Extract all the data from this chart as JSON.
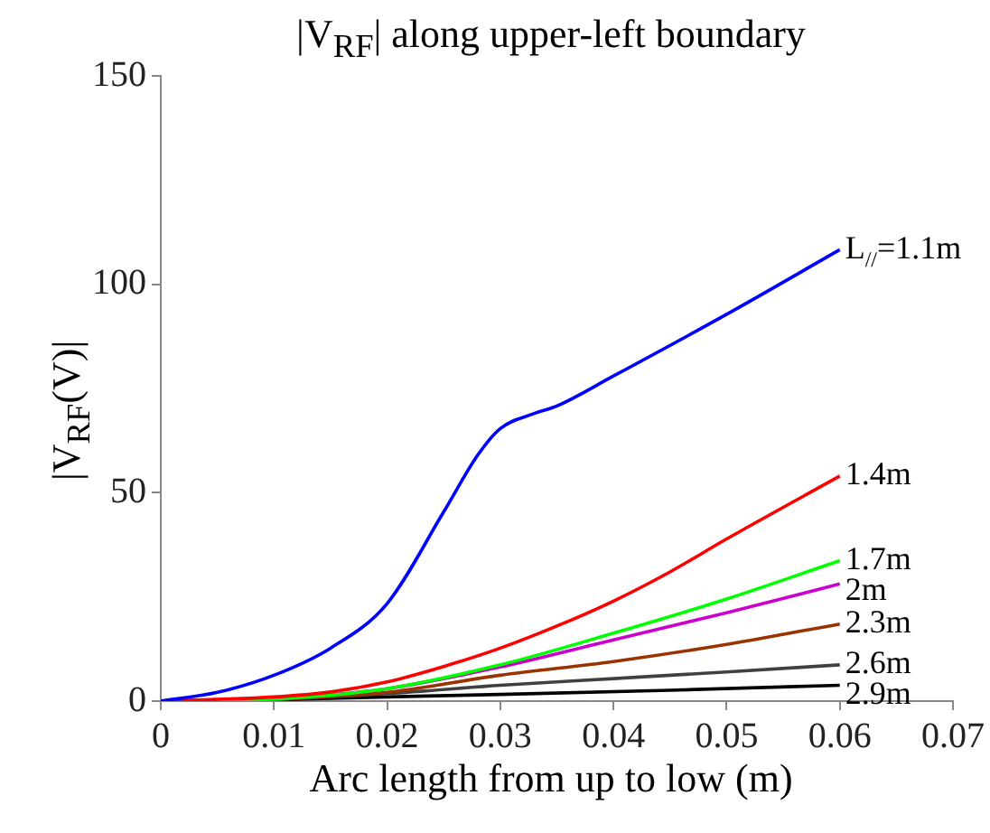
{
  "chart_data": {
    "type": "line",
    "title": "|V$_{RF}$| along upper-left boundary",
    "xlabel": "Arc length from up to low (m)",
    "ylabel": "|V$_{RF}$(V)|",
    "xlim": [
      0,
      0.07
    ],
    "xticks": [
      0,
      0.01,
      0.02,
      0.03,
      0.04,
      0.05,
      0.06,
      0.07
    ],
    "ylim": [
      0,
      150
    ],
    "yticks": [
      0,
      50,
      100,
      150
    ],
    "grid": false,
    "legend": false,
    "marker": "none",
    "line_style": "solid",
    "series": [
      {
        "name": "L$_{//}$=1.1m",
        "color": "#0000ff",
        "x": [
          0,
          0.005,
          0.01,
          0.015,
          0.02,
          0.025,
          0.028,
          0.03,
          0.033,
          0.035,
          0.04,
          0.05,
          0.06
        ],
        "values": [
          0,
          2.1,
          6.2,
          12.7,
          23.4,
          45.4,
          59,
          65.4,
          69,
          70.8,
          78,
          92.8,
          108.3
        ]
      },
      {
        "name": "1.4m",
        "color": "#ff0000",
        "x": [
          0,
          0.01,
          0.015,
          0.02,
          0.025,
          0.03,
          0.035,
          0.04,
          0.045,
          0.05,
          0.06
        ],
        "values": [
          0,
          1,
          2.2,
          4.6,
          8.3,
          12.7,
          18,
          24,
          31,
          38.9,
          54
        ]
      },
      {
        "name": "1.7m",
        "color": "#00ff00",
        "x": [
          0,
          0.01,
          0.02,
          0.03,
          0.04,
          0.05,
          0.06
        ],
        "values": [
          0,
          0.5,
          3,
          8.7,
          16.3,
          24.5,
          33.7
        ]
      },
      {
        "name": "2m",
        "color": "#cc00cc",
        "x": [
          0,
          0.01,
          0.02,
          0.03,
          0.04,
          0.05,
          0.06
        ],
        "values": [
          0,
          0.5,
          3,
          8.2,
          14.7,
          21.2,
          28.1
        ]
      },
      {
        "name": "2.3m",
        "color": "#993300",
        "x": [
          0,
          0.01,
          0.02,
          0.03,
          0.04,
          0.05,
          0.06
        ],
        "values": [
          0,
          0.4,
          2.1,
          6.2,
          9.5,
          13.6,
          18.5
        ]
      },
      {
        "name": "2.6m",
        "color": "#404040",
        "x": [
          0,
          0.01,
          0.02,
          0.03,
          0.04,
          0.05,
          0.06
        ],
        "values": [
          0,
          0.5,
          1.8,
          3.8,
          5.4,
          7,
          8.7
        ]
      },
      {
        "name": "2.9m",
        "color": "#000000",
        "x": [
          0,
          0.01,
          0.02,
          0.03,
          0.045,
          0.06
        ],
        "values": [
          0,
          0.3,
          1,
          1.6,
          2.6,
          3.8
        ]
      }
    ]
  }
}
